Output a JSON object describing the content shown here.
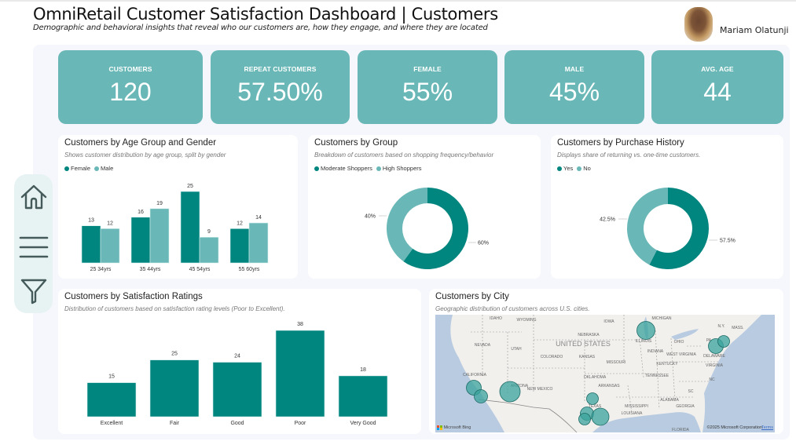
{
  "header": {
    "title": "OmniRetail Customer Satisfaction Dashboard | Customers",
    "subtitle": "Demographic and behavioral insights that reveal who our customers are, how they engage, and where they are located",
    "user_name": "Mariam Olatunji"
  },
  "nav": {
    "items": [
      {
        "name": "home",
        "icon": "home-icon"
      },
      {
        "name": "menu",
        "icon": "hamburger-menu-icon"
      },
      {
        "name": "filter",
        "icon": "filter-icon"
      }
    ]
  },
  "kpis": [
    {
      "label": "CUSTOMERS",
      "value": "120"
    },
    {
      "label": "REPEAT CUSTOMERS",
      "value": "57.50%"
    },
    {
      "label": "FEMALE",
      "value": "55%"
    },
    {
      "label": "MALE",
      "value": "45%"
    },
    {
      "label": "AVG. AGE",
      "value": "44"
    }
  ],
  "colors": {
    "primary": "#00857f",
    "secondary": "#69b8b7",
    "kpi_bg": "#69b8b7",
    "canvas_bg": "#f6f7fc"
  },
  "chart_data": [
    {
      "id": "age_gender",
      "type": "bar",
      "title": "Customers by Age Group and Gender",
      "subtitle": "Shows customer distribution by age group, split by gender",
      "categories": [
        "25 34yrs",
        "35 44yrs",
        "45 54yrs",
        "55 60yrs"
      ],
      "series": [
        {
          "name": "Female",
          "values": [
            13,
            16,
            25,
            12
          ],
          "color": "#00857f"
        },
        {
          "name": "Male",
          "values": [
            12,
            19,
            9,
            14
          ],
          "color": "#69b8b7"
        }
      ],
      "xlabel": "",
      "ylabel": "",
      "ylim": [
        0,
        25
      ],
      "grid": false,
      "legend": "top-left"
    },
    {
      "id": "group",
      "type": "pie",
      "donut": true,
      "title": "Customers by Group",
      "subtitle": "Breakdown of customers based on shopping frequency/behavior",
      "labels": [
        "Moderate Shoppers",
        "High Shoppers"
      ],
      "values": [
        60,
        40
      ],
      "data_labels": [
        "60%",
        "40%"
      ],
      "colors": [
        "#00857f",
        "#69b8b7"
      ],
      "legend": "top-left"
    },
    {
      "id": "purchase_history",
      "type": "pie",
      "donut": true,
      "title": "Customers by Purchase History",
      "subtitle": "Displays share of returning vs. one-time customers.",
      "labels": [
        "Yes",
        "No"
      ],
      "values": [
        57.5,
        42.5
      ],
      "data_labels": [
        "57.5%",
        "42.5%"
      ],
      "colors": [
        "#00857f",
        "#69b8b7"
      ],
      "legend": "top-left"
    },
    {
      "id": "satisfaction",
      "type": "bar",
      "title": "Customers by Satisfaction Ratings",
      "subtitle": "Distribution of customers based on satisfaction rating levels (Poor to Excellent).",
      "categories": [
        "Excellent",
        "Fair",
        "Good",
        "Poor",
        "Very Good"
      ],
      "values": [
        15,
        25,
        24,
        38,
        18
      ],
      "color": "#00857f",
      "xlabel": "",
      "ylabel": "",
      "ylim": [
        0,
        38
      ],
      "grid": false
    }
  ],
  "map": {
    "title": "Customers by City",
    "subtitle": "Geographic distribution of customers across U.S. cities.",
    "labels": [
      "IDAHO",
      "WYOMING",
      "IOWA",
      "MICHIGAN",
      "N.Y.",
      "MASS.",
      "NEBRASKA",
      "UNITED STATES",
      "ILLINOIS",
      "OHIO",
      "PA",
      "NEVADA",
      "UTAH",
      "COLORADO",
      "KANSAS",
      "MISSOURI",
      "INDIANA",
      "WEST VIRGINIA",
      "DELAWARE",
      "KENTUCKY",
      "VIRGINIA",
      "CALIFORNIA",
      "ARIZONA",
      "OKLAHOMA",
      "TENNESSEE",
      "NC",
      "NEW MEXICO",
      "ARKANSAS",
      "SC",
      "TEXAS",
      "ALABAMA",
      "MISSISSIPPI",
      "GEORGIA",
      "LOUISIANA",
      "FLORIDA"
    ],
    "attribution_left": "Microsoft Bing",
    "attribution_right": "©2025 Microsoft Corporation",
    "terms_link": "Terms"
  }
}
